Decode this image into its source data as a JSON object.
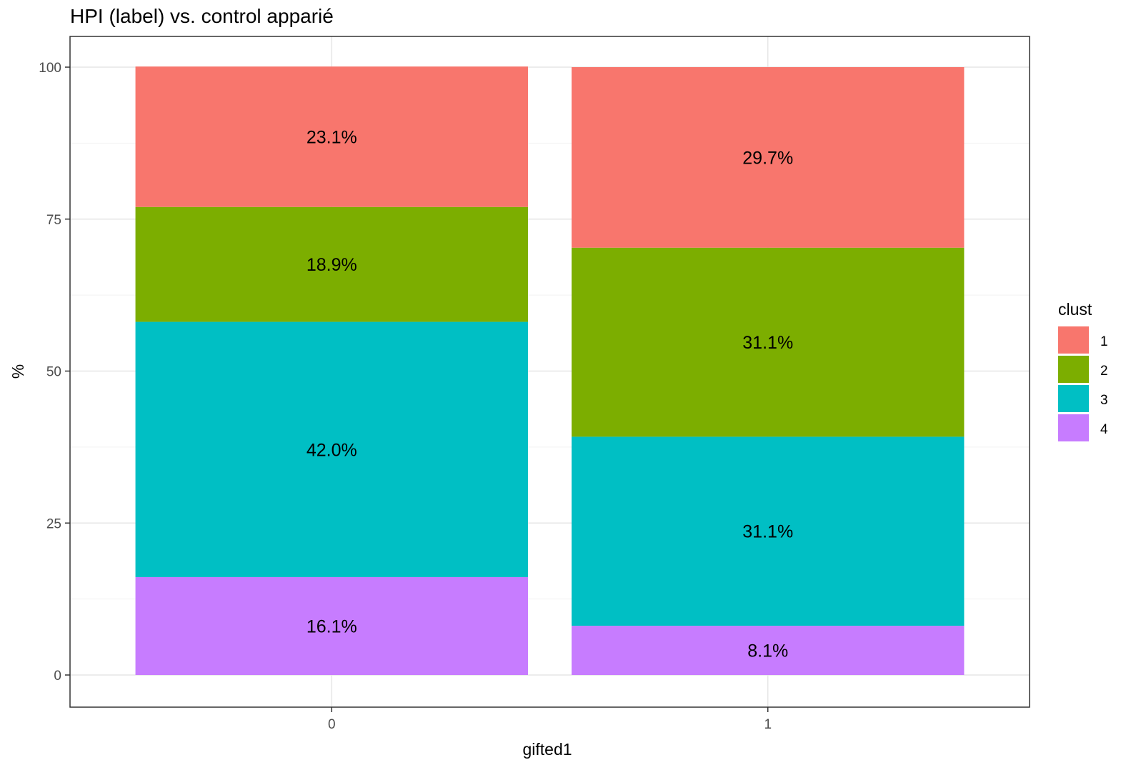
{
  "chart_data": {
    "type": "bar",
    "stacked": true,
    "title": "HPI (label) vs. control apparié",
    "xlabel": "gifted1",
    "ylabel": "%",
    "categories": [
      "0",
      "1"
    ],
    "ylim": [
      0,
      100
    ],
    "yticks": [
      "0",
      "25",
      "50",
      "75",
      "100"
    ],
    "grid": true,
    "legend_title": "clust",
    "legend_position": "right",
    "series": [
      {
        "name": "1",
        "color": "#F8766D",
        "values": [
          23.1,
          29.7
        ],
        "labels": [
          "23.1%",
          "29.7%"
        ]
      },
      {
        "name": "2",
        "color": "#7CAE00",
        "values": [
          18.9,
          31.1
        ],
        "labels": [
          "18.9%",
          "31.1%"
        ]
      },
      {
        "name": "3",
        "color": "#00BFC4",
        "values": [
          42.0,
          31.1
        ],
        "labels": [
          "42.0%",
          "31.1%"
        ]
      },
      {
        "name": "4",
        "color": "#C77CFF",
        "values": [
          16.1,
          8.1
        ],
        "labels": [
          "16.1%",
          "8.1%"
        ]
      }
    ]
  }
}
